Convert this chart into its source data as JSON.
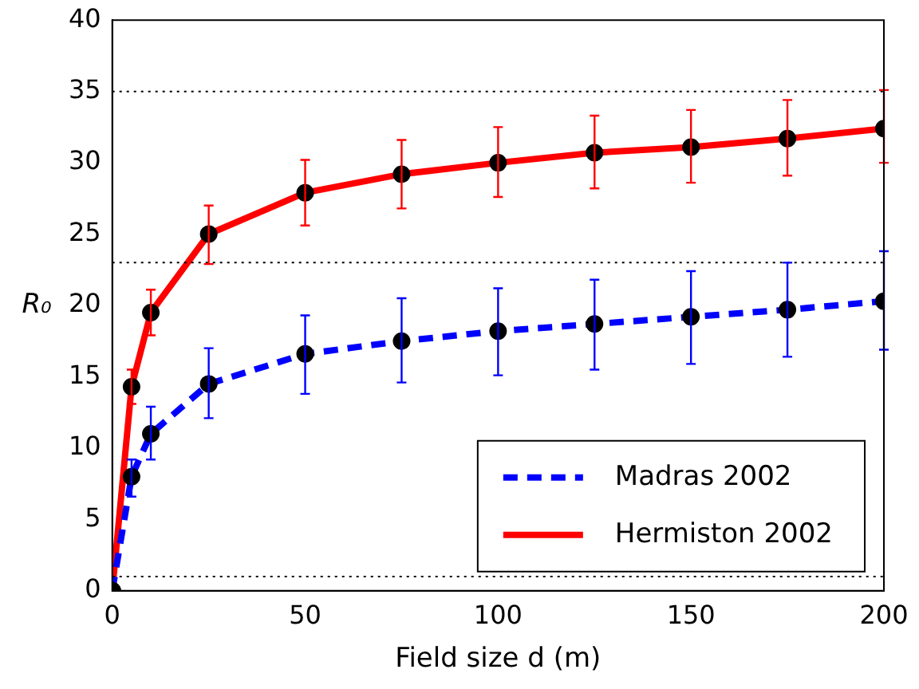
{
  "chart_data": {
    "type": "line",
    "xlabel": "Field size d (m)",
    "ylabel": "R₀",
    "x": [
      0,
      5,
      10,
      25,
      50,
      75,
      100,
      125,
      150,
      175,
      200
    ],
    "series": [
      {
        "name": "Madras 2002",
        "color": "#0000ff",
        "line_style": "dashed",
        "values": [
          0,
          8.0,
          11.0,
          14.5,
          16.6,
          17.5,
          18.2,
          18.7,
          19.2,
          19.7,
          20.3
        ],
        "errors": [
          null,
          [
            6.6,
            9.2
          ],
          [
            9.2,
            12.9
          ],
          [
            12.1,
            17.0
          ],
          [
            13.8,
            19.3
          ],
          [
            14.6,
            20.5
          ],
          [
            15.1,
            21.2
          ],
          [
            15.5,
            21.8
          ],
          [
            15.9,
            22.4
          ],
          [
            16.4,
            23.0
          ],
          [
            16.9,
            23.8
          ]
        ]
      },
      {
        "name": "Hermiston 2002",
        "color": "#ff0000",
        "line_style": "solid",
        "values": [
          0,
          14.3,
          19.5,
          25.0,
          27.9,
          29.2,
          30.0,
          30.7,
          31.1,
          31.7,
          32.4
        ],
        "errors": [
          null,
          [
            13.1,
            15.5
          ],
          [
            17.9,
            21.1
          ],
          [
            22.9,
            27.0
          ],
          [
            25.6,
            30.2
          ],
          [
            26.8,
            31.6
          ],
          [
            27.6,
            32.5
          ],
          [
            28.2,
            33.3
          ],
          [
            28.6,
            33.7
          ],
          [
            29.1,
            34.4
          ],
          [
            30.0,
            35.1
          ]
        ]
      }
    ],
    "marker": "circle",
    "xlim": [
      0,
      200
    ],
    "xticks": [
      0,
      50,
      100,
      150,
      200
    ],
    "ylim": [
      0,
      40
    ],
    "yticks": [
      0,
      5,
      10,
      15,
      20,
      25,
      30,
      35,
      40
    ],
    "ref_lines": [
      {
        "axis": "y",
        "value": 35,
        "color": "#000000",
        "line_style": "dotted"
      },
      {
        "axis": "y",
        "value": 23,
        "color": "#000000",
        "line_style": "dotted"
      },
      {
        "axis": "y",
        "value": 1,
        "color": "#000000",
        "line_style": "dotted"
      }
    ],
    "grid": false,
    "legend": "bottom right"
  }
}
